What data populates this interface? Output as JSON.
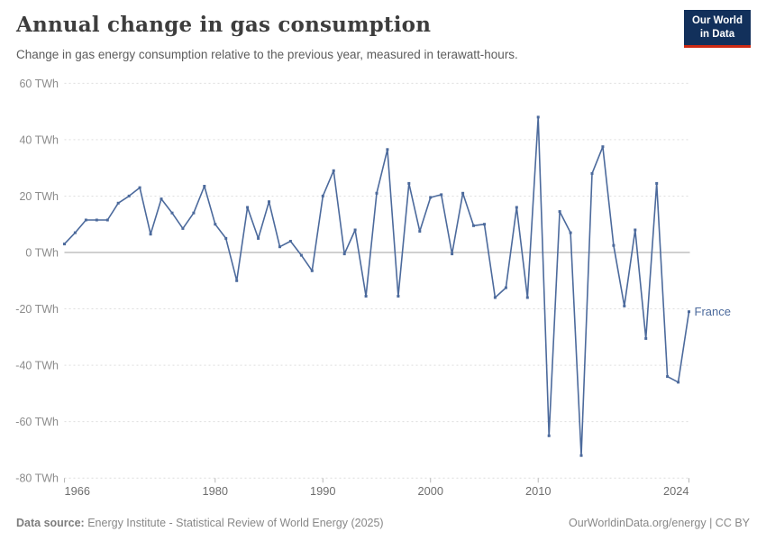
{
  "header": {
    "title": "Annual change in gas consumption",
    "subtitle": "Change in gas energy consumption relative to the previous year, measured in terawatt-hours."
  },
  "logo": {
    "line1": "Our World",
    "line2": "in Data",
    "bg_color": "#12305b",
    "accent_color": "#cc2a14"
  },
  "chart_data": {
    "type": "line",
    "title": "Annual change in gas consumption",
    "entity_label": "France",
    "unit": "TWh",
    "line_color": "#4C6A9C",
    "grid": "horizontal-dashed",
    "legend_position": "end-of-line",
    "xlim": [
      1966,
      2024
    ],
    "ylim": [
      -80,
      60
    ],
    "xticks": [
      1966,
      1980,
      1990,
      2000,
      2010,
      2024
    ],
    "yticks": [
      60,
      40,
      20,
      0,
      -20,
      -40,
      -60,
      -80
    ],
    "ytick_suffix": " TWh",
    "x": [
      1966,
      1967,
      1968,
      1969,
      1970,
      1971,
      1972,
      1973,
      1974,
      1975,
      1976,
      1977,
      1978,
      1979,
      1980,
      1981,
      1982,
      1983,
      1984,
      1985,
      1986,
      1987,
      1988,
      1989,
      1990,
      1991,
      1992,
      1993,
      1994,
      1995,
      1996,
      1997,
      1998,
      1999,
      2000,
      2001,
      2002,
      2003,
      2004,
      2005,
      2006,
      2007,
      2008,
      2009,
      2010,
      2011,
      2012,
      2013,
      2014,
      2015,
      2016,
      2017,
      2018,
      2019,
      2020,
      2021,
      2022,
      2023,
      2024
    ],
    "values": [
      3,
      7,
      11.5,
      11.5,
      11.5,
      17.5,
      20,
      23,
      6.5,
      19,
      14,
      8.5,
      14,
      23.5,
      10,
      5,
      -10,
      16,
      5,
      18,
      2,
      4,
      -1,
      -6.5,
      20,
      29,
      -0.5,
      8,
      -15.5,
      21,
      36.5,
      -15.5,
      24.5,
      7.5,
      19.5,
      20.5,
      -0.5,
      21,
      9.5,
      10,
      -16,
      -12.5,
      16,
      -16,
      48,
      -65,
      14.5,
      7,
      -72,
      28,
      37.5,
      2.5,
      -19,
      8,
      -30.5,
      24.5,
      -44,
      -46,
      -21
    ]
  },
  "footer": {
    "source_label": "Data source:",
    "source_text": " Energy Institute - Statistical Review of World Energy (2025)",
    "url": "OurWorldinData.org/energy",
    "separator": " | ",
    "license": "CC BY"
  }
}
